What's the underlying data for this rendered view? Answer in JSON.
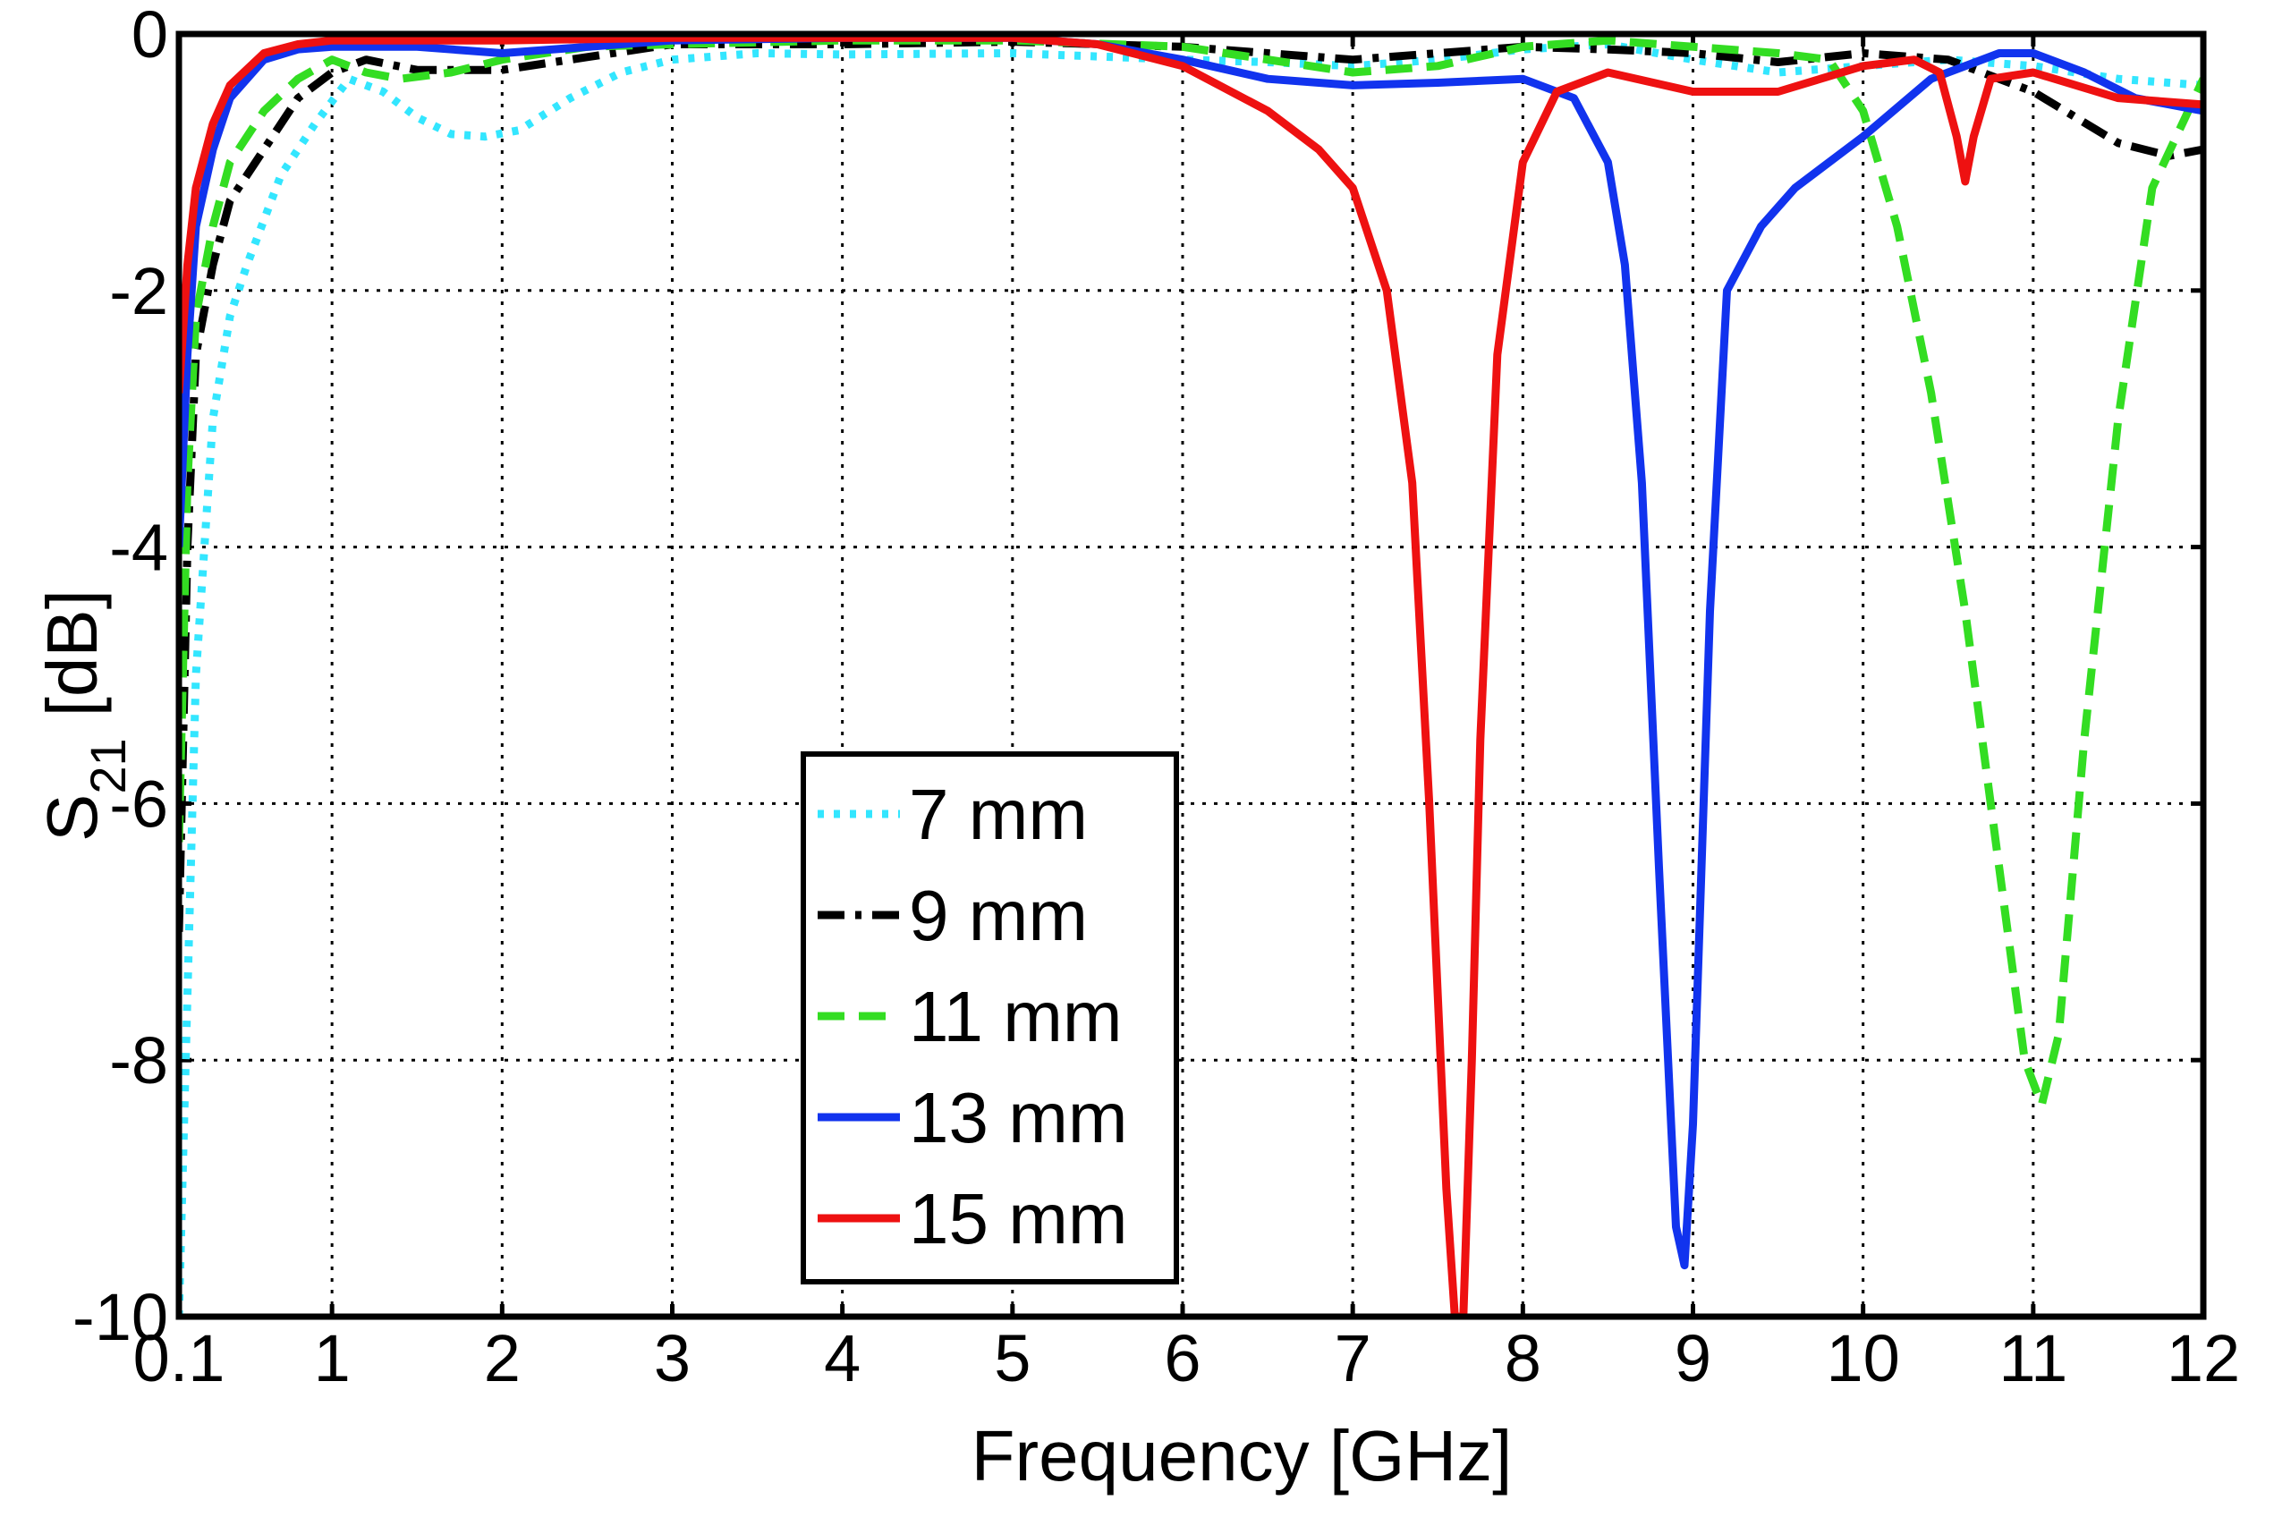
{
  "chart_data": {
    "type": "line",
    "title": "",
    "xlabel": "Frequency [GHz]",
    "ylabel_main": "S",
    "ylabel_sub": "21",
    "ylabel_unit": "[dB]",
    "xlim": [
      0.1,
      12
    ],
    "ylim": [
      -10,
      0
    ],
    "grid": true,
    "x_ticks": [
      0.1,
      1,
      2,
      3,
      4,
      5,
      6,
      7,
      8,
      9,
      10,
      11,
      12
    ],
    "x_tick_labels": [
      "0.1",
      "1",
      "2",
      "3",
      "4",
      "5",
      "6",
      "7",
      "8",
      "9",
      "10",
      "11",
      "12"
    ],
    "y_ticks": [
      0,
      -2,
      -4,
      -6,
      -8,
      -10
    ],
    "y_tick_labels": [
      "0",
      "-2",
      "-4",
      "-6",
      "-8",
      "-10"
    ],
    "legend_position": "lower-center",
    "series": [
      {
        "name": "7 mm",
        "color": "#33e6ff",
        "style": "dotted",
        "x": [
          0.1,
          0.2,
          0.3,
          0.4,
          0.5,
          0.7,
          0.9,
          1.1,
          1.3,
          1.5,
          1.7,
          1.9,
          2.1,
          2.4,
          2.7,
          3.0,
          3.5,
          4.0,
          5.0,
          6.0,
          6.5,
          7.0,
          7.5,
          8.0,
          8.5,
          9.0,
          9.5,
          10.0,
          10.5,
          11.0,
          11.5,
          12.0
        ],
        "y": [
          -10.0,
          -5.0,
          -3.0,
          -2.2,
          -1.8,
          -1.1,
          -0.7,
          -0.35,
          -0.45,
          -0.65,
          -0.78,
          -0.8,
          -0.75,
          -0.5,
          -0.3,
          -0.2,
          -0.15,
          -0.16,
          -0.15,
          -0.2,
          -0.22,
          -0.25,
          -0.2,
          -0.12,
          -0.08,
          -0.2,
          -0.3,
          -0.25,
          -0.2,
          -0.25,
          -0.35,
          -0.4
        ]
      },
      {
        "name": "9 mm",
        "color": "#000000",
        "style": "dashdot",
        "x": [
          0.1,
          0.15,
          0.2,
          0.3,
          0.4,
          0.6,
          0.8,
          1.0,
          1.2,
          1.5,
          2.0,
          2.5,
          3.0,
          4.0,
          5.0,
          6.0,
          6.5,
          7.0,
          7.5,
          8.0,
          8.5,
          9.0,
          9.5,
          10.0,
          10.5,
          11.0,
          11.5,
          11.8,
          12.0
        ],
        "y": [
          -7.0,
          -4.0,
          -2.5,
          -1.8,
          -1.3,
          -0.9,
          -0.5,
          -0.3,
          -0.2,
          -0.28,
          -0.28,
          -0.18,
          -0.08,
          -0.08,
          -0.06,
          -0.1,
          -0.15,
          -0.2,
          -0.15,
          -0.1,
          -0.12,
          -0.15,
          -0.22,
          -0.15,
          -0.2,
          -0.45,
          -0.85,
          -0.95,
          -0.9
        ]
      },
      {
        "name": "11 mm",
        "color": "#33dd22",
        "style": "dashed",
        "x": [
          0.1,
          0.15,
          0.2,
          0.3,
          0.4,
          0.6,
          0.8,
          1.0,
          1.2,
          1.4,
          1.7,
          2.0,
          2.5,
          3.0,
          4.0,
          5.0,
          6.0,
          7.0,
          7.5,
          8.0,
          8.5,
          9.0,
          9.5,
          9.8,
          10.0,
          10.2,
          10.4,
          10.6,
          10.8,
          10.95,
          11.05,
          11.15,
          11.3,
          11.5,
          11.7,
          12.0
        ],
        "y": [
          -6.3,
          -3.5,
          -2.2,
          -1.5,
          -1.0,
          -0.6,
          -0.35,
          -0.2,
          -0.3,
          -0.35,
          -0.3,
          -0.2,
          -0.1,
          -0.08,
          -0.05,
          -0.05,
          -0.1,
          -0.3,
          -0.25,
          -0.1,
          -0.05,
          -0.1,
          -0.15,
          -0.2,
          -0.6,
          -1.5,
          -2.8,
          -4.5,
          -6.5,
          -8.0,
          -8.35,
          -7.8,
          -5.5,
          -3.0,
          -1.2,
          -0.35
        ]
      },
      {
        "name": "13 mm",
        "color": "#1133ee",
        "style": "solid",
        "x": [
          0.1,
          0.15,
          0.2,
          0.3,
          0.4,
          0.6,
          0.8,
          1.0,
          1.5,
          2.0,
          3.0,
          4.0,
          5.0,
          5.5,
          6.0,
          6.5,
          7.0,
          7.5,
          8.0,
          8.3,
          8.5,
          8.6,
          8.7,
          8.8,
          8.9,
          8.95,
          9.0,
          9.1,
          9.2,
          9.4,
          9.6,
          10.0,
          10.4,
          10.8,
          11.0,
          11.3,
          11.6,
          12.0
        ],
        "y": [
          -4.0,
          -2.5,
          -1.5,
          -0.9,
          -0.5,
          -0.2,
          -0.12,
          -0.1,
          -0.1,
          -0.15,
          -0.05,
          -0.03,
          -0.03,
          -0.08,
          -0.2,
          -0.35,
          -0.4,
          -0.38,
          -0.35,
          -0.5,
          -1.0,
          -1.8,
          -3.5,
          -6.5,
          -9.3,
          -9.6,
          -8.5,
          -4.5,
          -2.0,
          -1.5,
          -1.2,
          -0.8,
          -0.35,
          -0.15,
          -0.15,
          -0.3,
          -0.5,
          -0.6
        ]
      },
      {
        "name": "15 mm",
        "color": "#ee1111",
        "style": "solid",
        "x": [
          0.1,
          0.15,
          0.2,
          0.3,
          0.4,
          0.6,
          0.8,
          1.0,
          1.5,
          2.0,
          3.0,
          4.0,
          5.0,
          5.5,
          6.0,
          6.5,
          6.8,
          7.0,
          7.2,
          7.35,
          7.45,
          7.55,
          7.6,
          7.65,
          7.7,
          7.75,
          7.85,
          8.0,
          8.2,
          8.5,
          9.0,
          9.5,
          10.0,
          10.3,
          10.45,
          10.55,
          10.6,
          10.65,
          10.75,
          11.0,
          11.5,
          12.0
        ],
        "y": [
          -2.8,
          -1.8,
          -1.2,
          -0.7,
          -0.4,
          -0.15,
          -0.08,
          -0.05,
          -0.05,
          -0.05,
          -0.03,
          -0.03,
          -0.03,
          -0.08,
          -0.25,
          -0.6,
          -0.9,
          -1.2,
          -2.0,
          -3.5,
          -6.0,
          -9.0,
          -10.0,
          -10.0,
          -8.0,
          -5.5,
          -2.5,
          -1.0,
          -0.45,
          -0.3,
          -0.45,
          -0.45,
          -0.25,
          -0.2,
          -0.3,
          -0.8,
          -1.15,
          -0.8,
          -0.35,
          -0.3,
          -0.5,
          -0.55
        ]
      }
    ]
  }
}
